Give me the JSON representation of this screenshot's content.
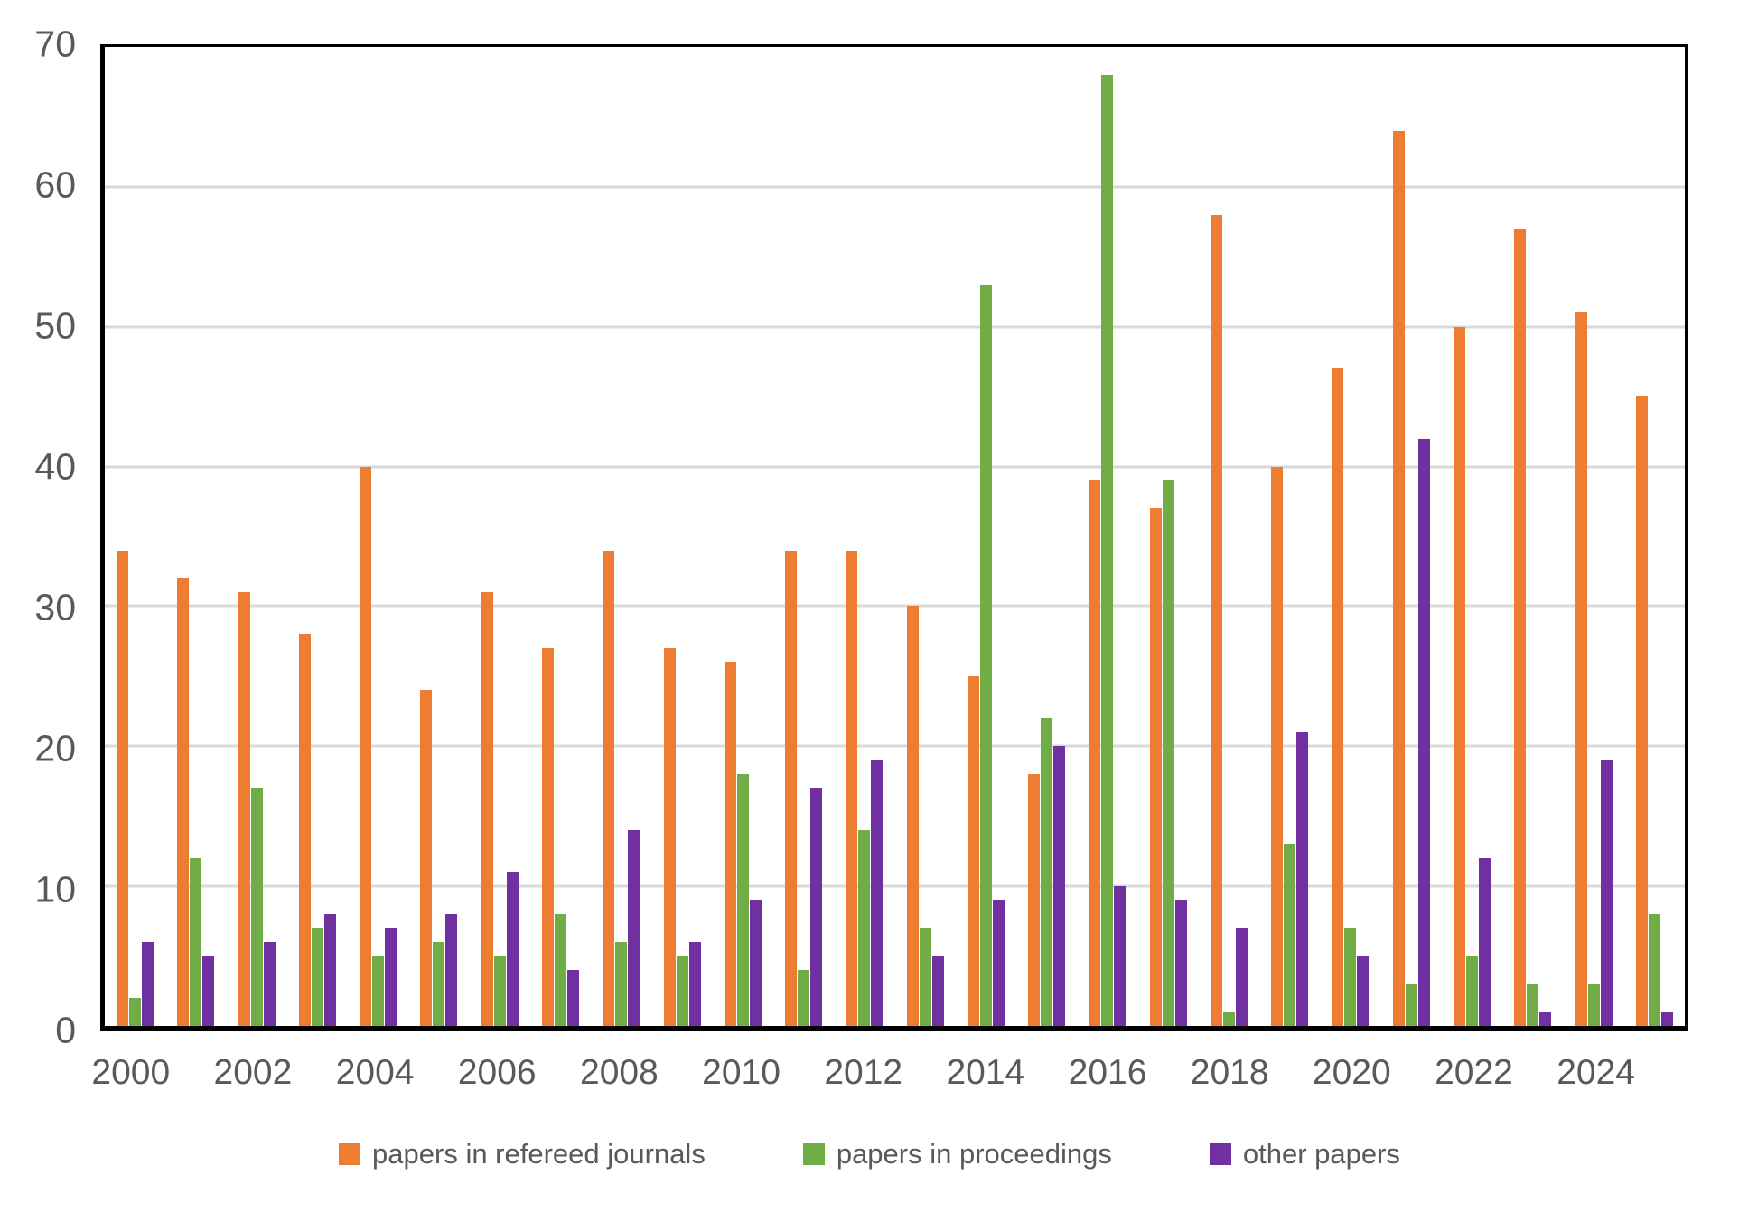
{
  "chart_data": {
    "type": "bar",
    "title": "",
    "categories": [
      "2000",
      "2001",
      "2002",
      "2003",
      "2004",
      "2005",
      "2006",
      "2007",
      "2008",
      "2009",
      "2010",
      "2011",
      "2012",
      "2013",
      "2014",
      "2015",
      "2016",
      "2017",
      "2018",
      "2019",
      "2020",
      "2021",
      "2022",
      "2023",
      "2024",
      "2025"
    ],
    "series": [
      {
        "name": "papers in refereed journals",
        "color": "#ED7D31",
        "values": [
          34,
          32,
          31,
          28,
          40,
          24,
          31,
          27,
          34,
          27,
          26,
          34,
          34,
          30,
          25,
          18,
          39,
          37,
          58,
          40,
          47,
          64,
          50,
          57,
          51,
          45
        ]
      },
      {
        "name": "papers in proceedings",
        "color": "#70AD47",
        "values": [
          2,
          12,
          17,
          7,
          5,
          6,
          5,
          8,
          6,
          5,
          18,
          4,
          14,
          7,
          53,
          22,
          68,
          39,
          1,
          13,
          7,
          3,
          5,
          3,
          3,
          8
        ]
      },
      {
        "name": "other papers",
        "color": "#7030A0",
        "values": [
          6,
          5,
          6,
          8,
          7,
          8,
          11,
          4,
          14,
          6,
          9,
          17,
          19,
          5,
          9,
          20,
          10,
          9,
          7,
          21,
          5,
          42,
          12,
          1,
          19,
          1
        ]
      }
    ],
    "xlabel": "",
    "ylabel": "",
    "ylim": [
      0,
      70
    ],
    "ytick_interval": 10,
    "yticks": [
      0,
      10,
      20,
      30,
      40,
      50,
      60,
      70
    ],
    "xticks_shown": [
      "2000",
      "2002",
      "2004",
      "2006",
      "2008",
      "2010",
      "2012",
      "2014",
      "2016",
      "2018",
      "2020",
      "2022",
      "2024"
    ],
    "grid": true,
    "gridline_color": "#D9D9D9",
    "axis_frame_color": "#000000",
    "label_color": "#595959",
    "legend_position": "bottom"
  }
}
